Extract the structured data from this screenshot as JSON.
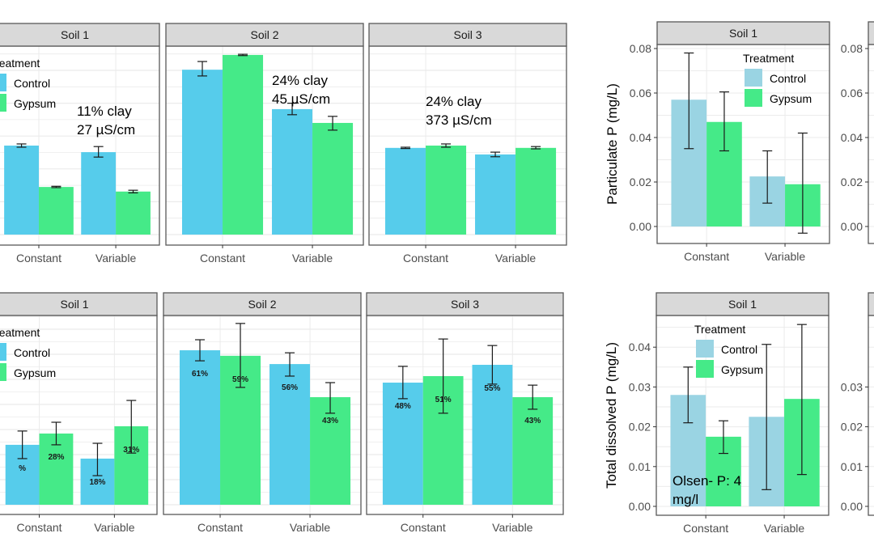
{
  "colors": {
    "control_left": "#56CCEB",
    "control_right": "#9AD4E3",
    "gypsum": "#45EA88",
    "strip_bg": "#D9D9D9",
    "panel_border": "#595959",
    "grid": "#EBEBEB",
    "errorbar": "#1a1a1a"
  },
  "chart_data": [
    {
      "id": "top-left",
      "type": "bar",
      "title": "",
      "xlabel": "",
      "ylabel": "",
      "y_axis_visible": false,
      "y_units": "gridline units (axis labels cropped)",
      "ylim": [
        0,
        5.7
      ],
      "grid": true,
      "categories": [
        "Constant",
        "Variable"
      ],
      "legend": {
        "title": "Treatment",
        "entries": [
          "Control",
          "Gypsum"
        ],
        "placement": "top-left"
      },
      "panels": [
        {
          "strip": "Soil 1",
          "series": [
            {
              "name": "Control",
              "values": [
                2.71,
                2.51
              ],
              "err_low": [
                2.66,
                2.36
              ],
              "err_high": [
                2.76,
                2.68
              ]
            },
            {
              "name": "Gypsum",
              "values": [
                1.45,
                1.31
              ],
              "err_low": [
                1.43,
                1.27
              ],
              "err_high": [
                1.47,
                1.35
              ]
            }
          ],
          "annotation": [
            "11% clay",
            "27 µS/cm"
          ]
        },
        {
          "strip": "Soil 2",
          "series": [
            {
              "name": "Control",
              "values": [
                5.02,
                3.82
              ],
              "err_low": [
                4.83,
                3.65
              ],
              "err_high": [
                5.27,
                4.0
              ]
            },
            {
              "name": "Gypsum",
              "values": [
                5.47,
                3.4
              ],
              "err_low": [
                5.45,
                3.18
              ],
              "err_high": [
                5.49,
                3.6
              ]
            }
          ],
          "annotation": [
            "24% clay",
            "45 µS/cm"
          ]
        },
        {
          "strip": "Soil 3",
          "series": [
            {
              "name": "Control",
              "values": [
                2.64,
                2.44
              ],
              "err_low": [
                2.62,
                2.37
              ],
              "err_high": [
                2.66,
                2.51
              ]
            },
            {
              "name": "Gypsum",
              "values": [
                2.71,
                2.64
              ],
              "err_low": [
                2.66,
                2.61
              ],
              "err_high": [
                2.76,
                2.68
              ]
            }
          ],
          "annotation": [
            "24% clay",
            "373 µS/cm"
          ]
        }
      ]
    },
    {
      "id": "top-right",
      "type": "bar",
      "title": "",
      "xlabel": "",
      "ylabel": "Particulate P (mg/L)",
      "ylim": [
        -0.007,
        0.082
      ],
      "yticks": [
        "0.00",
        "0.02",
        "0.04",
        "0.06",
        "0.08"
      ],
      "ytick_values": [
        0,
        0.02,
        0.04,
        0.06,
        0.08
      ],
      "grid": true,
      "categories": [
        "Constant",
        "Variable"
      ],
      "legend": {
        "title": "Treatment",
        "entries": [
          "Control",
          "Gypsum"
        ],
        "placement": "top-right"
      },
      "panels": [
        {
          "strip": "Soil 1",
          "series": [
            {
              "name": "Control",
              "values": [
                0.057,
                0.0225
              ],
              "err_low": [
                0.035,
                0.0105
              ],
              "err_high": [
                0.078,
                0.034
              ]
            },
            {
              "name": "Gypsum",
              "values": [
                0.047,
                0.019
              ],
              "err_low": [
                0.034,
                -0.003
              ],
              "err_high": [
                0.0605,
                0.042
              ]
            }
          ]
        },
        {
          "strip": "",
          "series": [],
          "partial": true
        }
      ]
    },
    {
      "id": "bottom-left",
      "type": "bar",
      "title": "",
      "xlabel": "",
      "ylabel": "",
      "y_axis_visible": false,
      "y_units": "gridline units (axis labels cropped)",
      "ylim": [
        0,
        7.4
      ],
      "grid": true,
      "categories": [
        "Constant",
        "Variable"
      ],
      "legend": {
        "title": "Treatment",
        "entries": [
          "Control",
          "Gypsum"
        ],
        "placement": "top-left"
      },
      "panels": [
        {
          "strip": "Soil 1",
          "series": [
            {
              "name": "Control",
              "values": [
                2.39,
                1.84
              ],
              "err_low": [
                1.84,
                1.16
              ],
              "err_high": [
                2.94,
                2.45
              ],
              "labels": [
                "%",
                "18%"
              ]
            },
            {
              "name": "Gypsum",
              "values": [
                2.84,
                3.13
              ],
              "err_low": [
                2.39,
                2.06
              ],
              "err_high": [
                3.29,
                4.16
              ],
              "labels": [
                "28%",
                "31%"
              ]
            }
          ]
        },
        {
          "strip": "Soil 2",
          "series": [
            {
              "name": "Control",
              "values": [
                6.16,
                5.61
              ],
              "err_low": [
                5.74,
                5.13
              ],
              "err_high": [
                6.58,
                6.06
              ],
              "labels": [
                "61%",
                "56%"
              ]
            },
            {
              "name": "Gypsum",
              "values": [
                5.94,
                4.29
              ],
              "err_low": [
                4.68,
                3.65
              ],
              "err_high": [
                7.23,
                4.87
              ],
              "labels": [
                "59%",
                "43%"
              ]
            }
          ]
        },
        {
          "strip": "Soil 3",
          "series": [
            {
              "name": "Control",
              "values": [
                4.87,
                5.58
              ],
              "err_low": [
                4.23,
                4.81
              ],
              "err_high": [
                5.52,
                6.35
              ],
              "labels": [
                "48%",
                "55%"
              ]
            },
            {
              "name": "Gypsum",
              "values": [
                5.13,
                4.29
              ],
              "err_low": [
                3.65,
                3.81
              ],
              "err_high": [
                6.61,
                4.77
              ],
              "labels": [
                "51%",
                "43%"
              ]
            }
          ]
        }
      ]
    },
    {
      "id": "bottom-right",
      "type": "bar",
      "title": "",
      "xlabel": "",
      "ylabel": "Total dissolved P (mg/L)",
      "ylim": [
        -0.002,
        0.048
      ],
      "yticks": [
        "0.00",
        "0.01",
        "0.02",
        "0.03",
        "0.04"
      ],
      "ytick_values": [
        0,
        0.01,
        0.02,
        0.03,
        0.04
      ],
      "grid": true,
      "categories": [
        "Constant",
        "Variable"
      ],
      "legend": {
        "title": "Treatment",
        "entries": [
          "Control",
          "Gypsum"
        ],
        "placement": "top-left"
      },
      "panels": [
        {
          "strip": "Soil 1",
          "series": [
            {
              "name": "Control",
              "values": [
                0.028,
                0.0225
              ],
              "err_low": [
                0.021,
                0.0042
              ],
              "err_high": [
                0.035,
                0.0407
              ]
            },
            {
              "name": "Gypsum",
              "values": [
                0.0175,
                0.027
              ],
              "err_low": [
                0.0133,
                0.008
              ],
              "err_high": [
                0.0215,
                0.0457
              ]
            }
          ],
          "annotation": [
            "Olsen- P: 4",
            "mg/l"
          ]
        },
        {
          "strip": "",
          "series": [],
          "partial": true,
          "yticks": [
            "0.00",
            "0.01",
            "0.02",
            "0.03"
          ]
        }
      ]
    }
  ]
}
